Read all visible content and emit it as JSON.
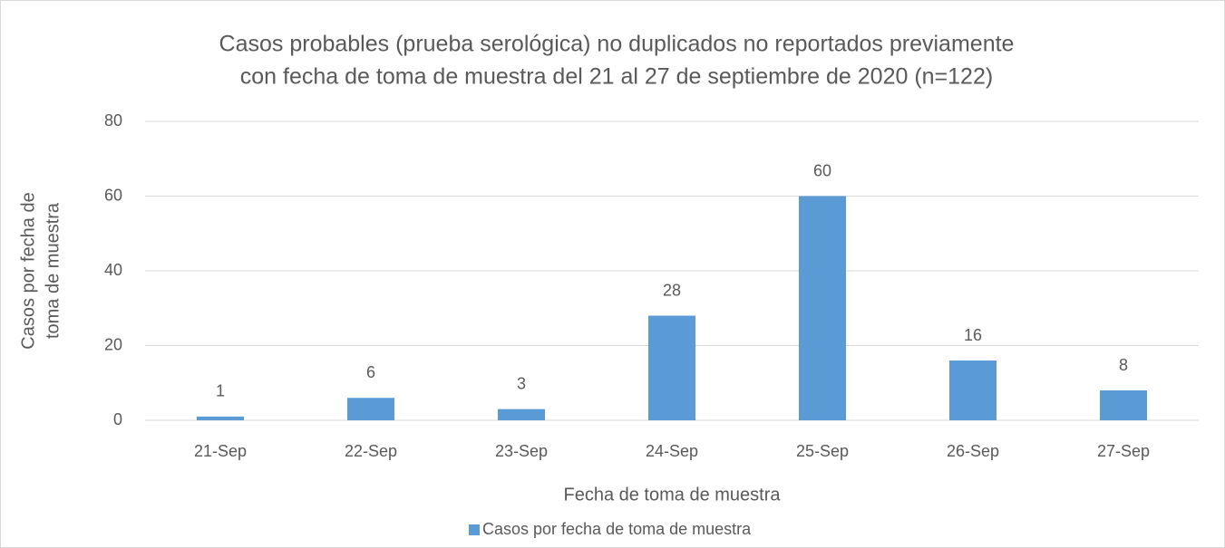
{
  "chart_data": {
    "type": "bar",
    "title": [
      "Casos probables (prueba serológica) no duplicados no reportados previamente",
      "con fecha de toma de muestra del 21 al 27 de septiembre de 2020 (n=122)"
    ],
    "x_label": "Fecha de toma de muestra",
    "y_label": [
      "Casos por fecha de",
      "toma de muestra"
    ],
    "categories": [
      "21-Sep",
      "22-Sep",
      "23-Sep",
      "24-Sep",
      "25-Sep",
      "26-Sep",
      "27-Sep"
    ],
    "series": [
      {
        "name": "Casos por fecha de toma de muestra",
        "color": "#5b9bd5",
        "values": [
          1,
          6,
          3,
          28,
          60,
          16,
          8
        ]
      }
    ],
    "ylim": [
      0,
      80
    ],
    "yticks": [
      0,
      20,
      40,
      60,
      80
    ],
    "grid": true,
    "legend": "bottom"
  }
}
